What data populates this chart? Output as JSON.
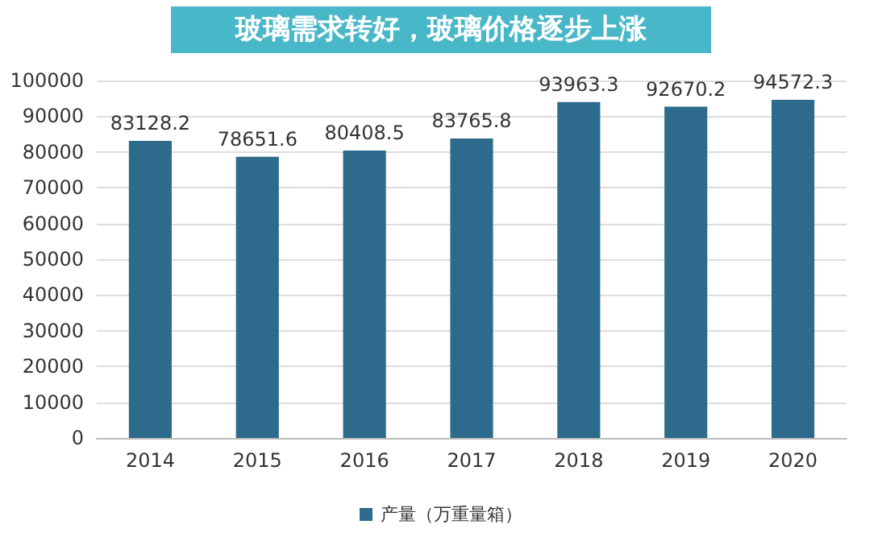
{
  "chart_data": {
    "type": "bar",
    "title": "玻璃需求转好，玻璃价格逐步上涨",
    "categories": [
      "2014",
      "2015",
      "2016",
      "2017",
      "2018",
      "2019",
      "2020"
    ],
    "series": [
      {
        "name": "产量（万重量箱）",
        "color": "#2d6a8c",
        "values": [
          83128.2,
          78651.6,
          80408.5,
          83765.8,
          93963.3,
          92670.2,
          94572.3
        ]
      }
    ],
    "ylim": [
      0,
      100000
    ],
    "yticks": [
      0,
      10000,
      20000,
      30000,
      40000,
      50000,
      60000,
      70000,
      80000,
      90000,
      100000
    ],
    "grid": "y",
    "legend": "bottom",
    "data_labels": true
  }
}
